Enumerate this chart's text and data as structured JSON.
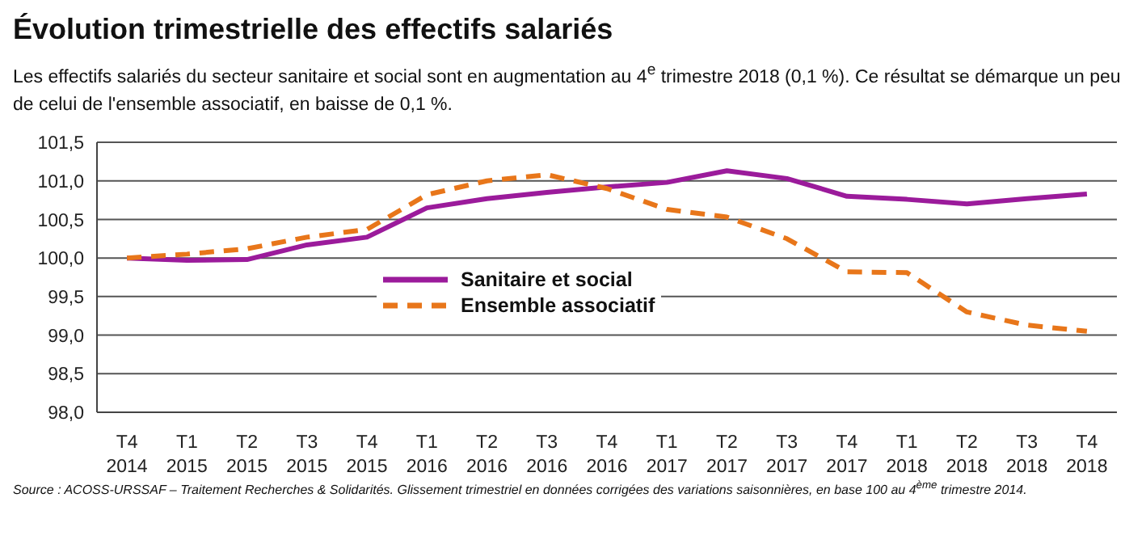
{
  "chart_data": {
    "type": "line",
    "title": "Évolution trimestrielle des effectifs salariés",
    "subtitle": "Les effectifs salariés du secteur sanitaire et social sont en augmentation au 4$^{e}$ trimestre 2018 (0,1 %). Ce résultat se démarque un peu de celui de l'ensemble associatif, en baisse de 0,1 %.",
    "annotations": [
      "Source : ACOSS-URSSAF – Traitement Recherches & Solidarités. Glissement trimestriel en données corrigées des variations saisonnières, en base 100 au 4$^{ème}$ trimestre 2014."
    ],
    "categories": [
      "T4 2014",
      "T1 2015",
      "T2 2015",
      "T3 2015",
      "T4 2015",
      "T1 2016",
      "T2 2016",
      "T3 2016",
      "T4 2016",
      "T1 2017",
      "T2 2017",
      "T3 2017",
      "T4 2017",
      "T1 2018",
      "T2 2018",
      "T3 2018",
      "T4 2018"
    ],
    "series": [
      {
        "name": "Sanitaire et social",
        "color": "#9b1b9b",
        "line_style": "solid",
        "values": [
          100.0,
          99.97,
          99.98,
          100.17,
          100.27,
          100.65,
          100.77,
          100.85,
          100.92,
          100.98,
          101.13,
          101.03,
          100.8,
          100.76,
          100.7,
          100.77,
          100.83
        ]
      },
      {
        "name": "Ensemble associatif",
        "color": "#e8761a",
        "line_style": "dashed",
        "values": [
          100.0,
          100.05,
          100.12,
          100.27,
          100.37,
          100.82,
          101.0,
          101.08,
          100.9,
          100.63,
          100.53,
          100.25,
          99.82,
          99.81,
          99.3,
          99.13,
          99.05
        ]
      }
    ],
    "ylim": [
      98.0,
      101.5
    ],
    "yticks": [
      {
        "value": 98.0,
        "label": "98,0"
      },
      {
        "value": 98.5,
        "label": "98,5"
      },
      {
        "value": 99.0,
        "label": "99,0"
      },
      {
        "value": 99.5,
        "label": "99,5"
      },
      {
        "value": 100.0,
        "label": "100,0"
      },
      {
        "value": 100.5,
        "label": "100,5"
      },
      {
        "value": 101.0,
        "label": "101,0"
      },
      {
        "value": 101.5,
        "label": "101,5"
      }
    ],
    "grid": "y",
    "legend": "center",
    "marker": "none"
  }
}
